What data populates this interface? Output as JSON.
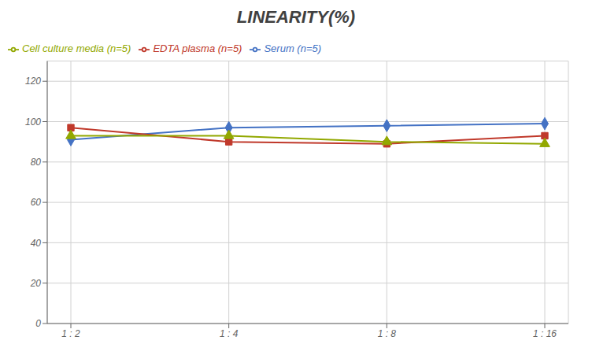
{
  "chart_data": {
    "type": "line",
    "title": "LINEARITY(%)",
    "categories": [
      "1 : 2",
      "1 : 4",
      "1 : 8",
      "1 : 16"
    ],
    "series": [
      {
        "name": "Serum (n=5)",
        "color": "#4472C4",
        "marker": "diamond",
        "values": [
          91,
          97,
          98,
          99
        ]
      },
      {
        "name": "EDTA plasma (n=5)",
        "color": "#C0392B",
        "marker": "square",
        "values": [
          97,
          90,
          89,
          93
        ]
      },
      {
        "name": "Cell culture media (n=5)",
        "color": "#92a800",
        "marker": "triangle",
        "values": [
          93,
          93,
          90,
          89
        ]
      }
    ],
    "ylim": [
      0,
      130
    ],
    "yticks": [
      0,
      20,
      40,
      60,
      80,
      100,
      120
    ],
    "grid": true,
    "legend": "upper left"
  }
}
